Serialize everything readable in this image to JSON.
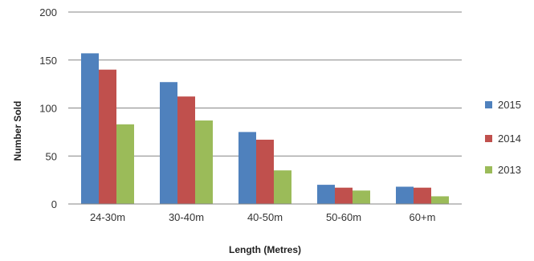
{
  "chart_data": {
    "type": "bar",
    "xlabel": "Length (Metres)",
    "ylabel": "Number Sold",
    "ylim": [
      0,
      200
    ],
    "yticks": [
      0,
      50,
      100,
      150,
      200
    ],
    "grid": true,
    "legend_position": "right",
    "categories": [
      "24-30m",
      "30-40m",
      "40-50m",
      "50-60m",
      "60+m"
    ],
    "series": [
      {
        "name": "2015",
        "color": "#4f81bd",
        "values": [
          157,
          127,
          75,
          20,
          18
        ]
      },
      {
        "name": "2014",
        "color": "#c0504d",
        "values": [
          140,
          112,
          67,
          17,
          17
        ]
      },
      {
        "name": "2013",
        "color": "#9bbb59",
        "values": [
          83,
          87,
          35,
          14,
          8
        ]
      }
    ]
  }
}
